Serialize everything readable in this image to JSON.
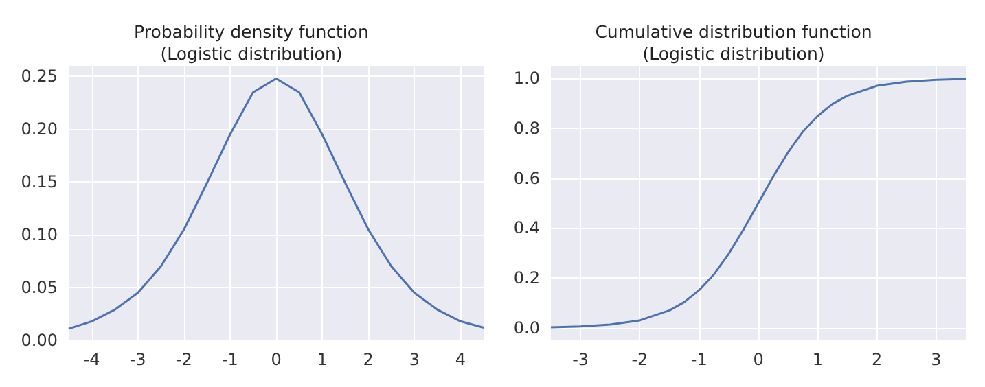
{
  "chart_data": [
    {
      "type": "line",
      "title": "Probability density function\n(Logistic distribution)",
      "x": [
        -4.5,
        -4,
        -3.5,
        -3,
        -2.5,
        -2,
        -1.5,
        -1,
        -0.5,
        0,
        0.5,
        1,
        1.5,
        2,
        2.5,
        3,
        3.5,
        4,
        4.5
      ],
      "series": [
        {
          "color": "#4c72b0",
          "values": [
            0.011,
            0.018,
            0.029,
            0.045,
            0.07,
            0.105,
            0.149,
            0.195,
            0.235,
            0.248,
            0.235,
            0.195,
            0.149,
            0.105,
            0.07,
            0.045,
            0.029,
            0.018,
            0.012
          ]
        }
      ],
      "xlim": [
        -4.5,
        4.5
      ],
      "xticks": [
        -4,
        -3,
        -2,
        -1,
        0,
        1,
        2,
        3,
        4
      ],
      "ylim": [
        0,
        0.26
      ],
      "yticks": [
        {
          "value": 0,
          "label": "0.00"
        },
        {
          "value": 0.05,
          "label": "0.05"
        },
        {
          "value": 0.1,
          "label": "0.10"
        },
        {
          "value": 0.15,
          "label": "0.15"
        },
        {
          "value": 0.2,
          "label": "0.20"
        },
        {
          "value": 0.25,
          "label": "0.25"
        }
      ],
      "grid": true,
      "marker": "none",
      "line_style": "solid"
    },
    {
      "type": "line",
      "title": "Cumulative distribution function\n(Logistic distribution)",
      "x": [
        -3.5,
        -3,
        -2.5,
        -2,
        -1.5,
        -1.25,
        -1,
        -0.75,
        -0.5,
        -0.25,
        0,
        0.25,
        0.5,
        0.75,
        1,
        1.25,
        1.5,
        2,
        2.5,
        3,
        3.5
      ],
      "series": [
        {
          "color": "#4c72b0",
          "values": [
            0.002,
            0.006,
            0.013,
            0.03,
            0.07,
            0.103,
            0.151,
            0.214,
            0.297,
            0.394,
            0.5,
            0.606,
            0.703,
            0.786,
            0.849,
            0.897,
            0.93,
            0.97,
            0.987,
            0.994,
            0.998
          ]
        }
      ],
      "xlim": [
        -3.5,
        3.5
      ],
      "xticks": [
        -3,
        -2,
        -1,
        0,
        1,
        2,
        3
      ],
      "ylim": [
        -0.05,
        1.05
      ],
      "yticks": [
        {
          "value": 0,
          "label": "0.0"
        },
        {
          "value": 0.2,
          "label": "0.2"
        },
        {
          "value": 0.4,
          "label": "0.4"
        },
        {
          "value": 0.6,
          "label": "0.6"
        },
        {
          "value": 0.8,
          "label": "0.8"
        },
        {
          "value": 1,
          "label": "1.0"
        }
      ],
      "grid": true,
      "marker": "none",
      "line_style": "solid"
    }
  ]
}
